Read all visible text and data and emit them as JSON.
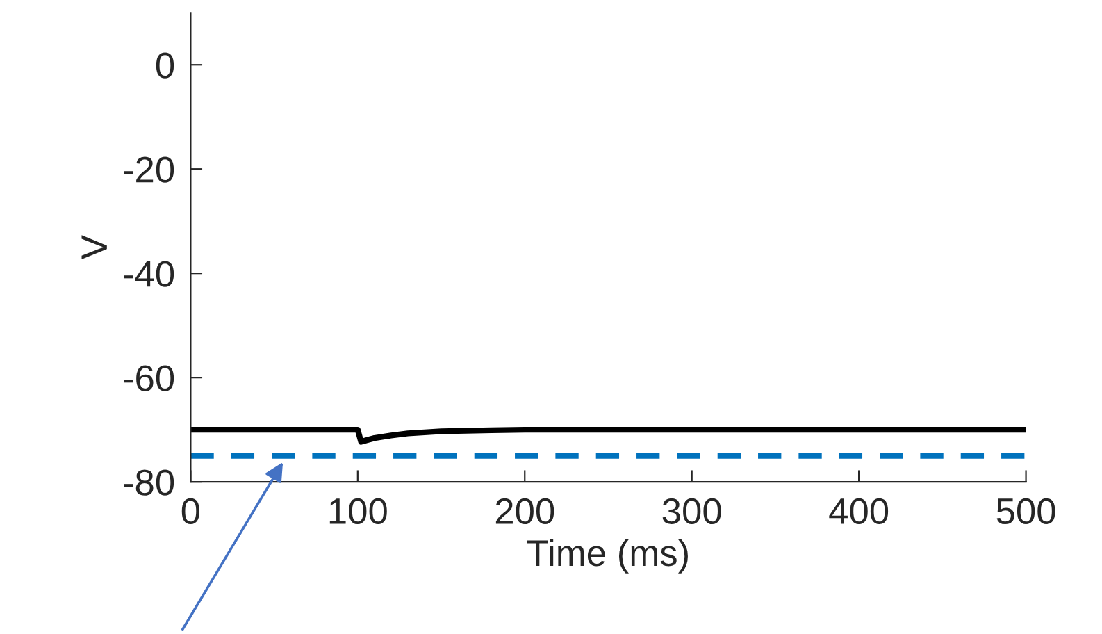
{
  "chart_data": {
    "type": "line",
    "xlabel": "Time (ms)",
    "ylabel": "V",
    "xlim": [
      0,
      500
    ],
    "xticks": [
      0,
      100,
      200,
      300,
      400,
      500
    ],
    "ylim": [
      -80,
      10
    ],
    "yticks": [
      -80,
      -60,
      -40,
      -20,
      0
    ],
    "grid": false,
    "marker": "none",
    "series": [
      {
        "color": "#000000",
        "line_style": "solid",
        "x": [
          0,
          100,
          102,
          110,
          120,
          130,
          150,
          180,
          200,
          500
        ],
        "values": [
          -70,
          -70,
          -72.3,
          -71.6,
          -71.1,
          -70.7,
          -70.3,
          -70.1,
          -70,
          -70
        ]
      }
    ],
    "ref_lines": [
      {
        "axis": "y",
        "value": -75,
        "label": null,
        "color": "#0072bd",
        "line_style": "dashed"
      }
    ]
  }
}
